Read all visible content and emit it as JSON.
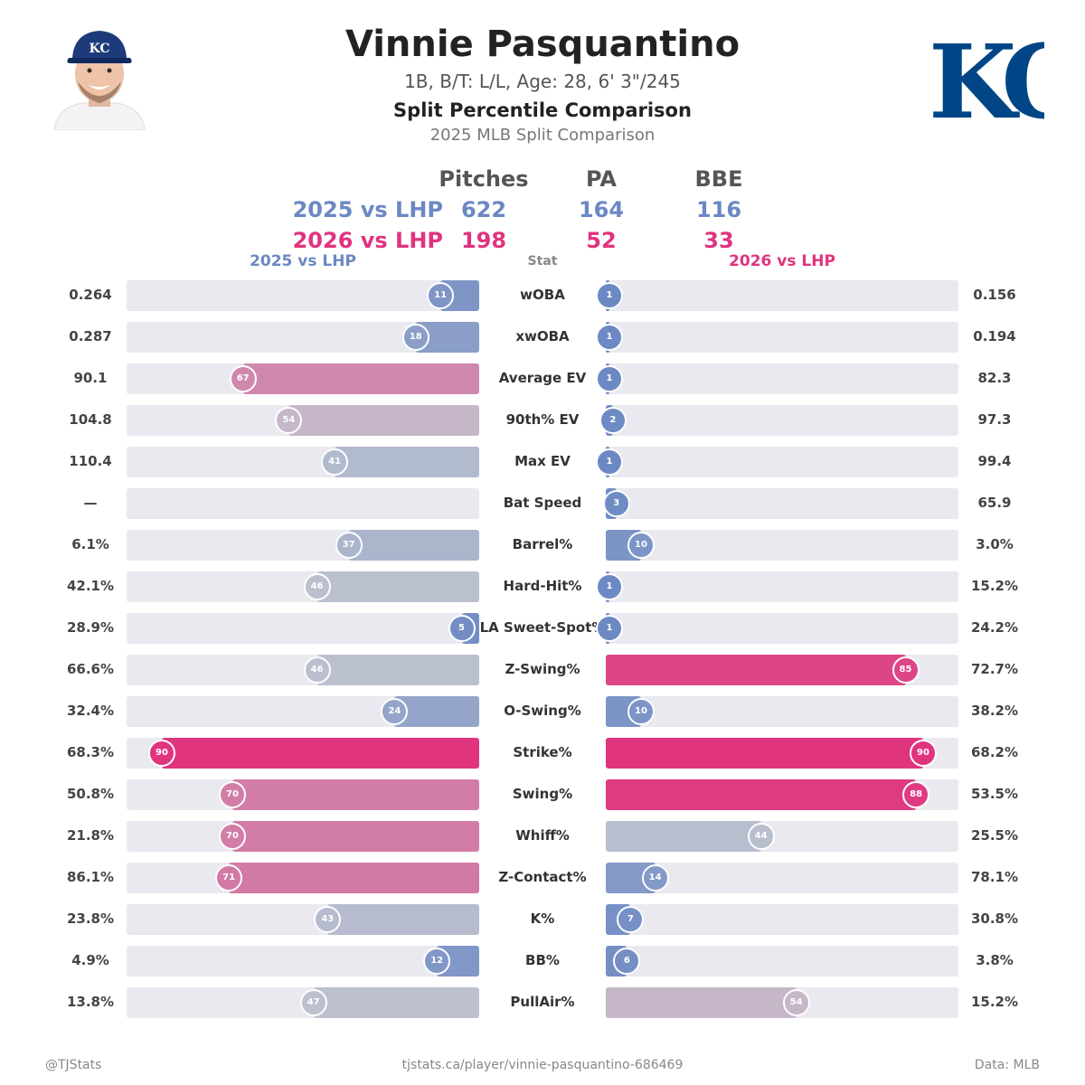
{
  "header": {
    "player_name": "Vinnie Pasquantino",
    "bio": "1B, B/T: L/L, Age: 28, 6' 3\"/245",
    "chart_title": "Split Percentile Comparison",
    "chart_subtitle": "2025 MLB Split Comparison"
  },
  "summary": {
    "columns": [
      "Pitches",
      "PA",
      "BBE"
    ],
    "rows": [
      {
        "label": "2025 vs LHP",
        "pitches": "622",
        "pa": "164",
        "bbe": "116"
      },
      {
        "label": "2026 vs LHP",
        "pitches": "198",
        "pa": "52",
        "bbe": "33"
      }
    ]
  },
  "column_headers": {
    "left": "2025 vs LHP",
    "center": "Stat",
    "right": "2026 vs LHP"
  },
  "colors": {
    "good": "#6b88c4",
    "bad": "#e0347f",
    "neutral": "#c2c5cf",
    "track": "#e9e9ef"
  },
  "chart_data": {
    "type": "bar",
    "series": [
      {
        "name": "2025 vs LHP"
      },
      {
        "name": "2026 vs LHP"
      }
    ],
    "rows": [
      {
        "stat": "wOBA",
        "left_value": "0.264",
        "left_pct": 11,
        "right_value": "0.156",
        "right_pct": 1
      },
      {
        "stat": "xwOBA",
        "left_value": "0.287",
        "left_pct": 18,
        "right_value": "0.194",
        "right_pct": 1
      },
      {
        "stat": "Average EV",
        "left_value": "90.1",
        "left_pct": 67,
        "right_value": "82.3",
        "right_pct": 1
      },
      {
        "stat": "90th% EV",
        "left_value": "104.8",
        "left_pct": 54,
        "right_value": "97.3",
        "right_pct": 2
      },
      {
        "stat": "Max EV",
        "left_value": "110.4",
        "left_pct": 41,
        "right_value": "99.4",
        "right_pct": 1
      },
      {
        "stat": "Bat Speed",
        "left_value": "—",
        "left_pct": null,
        "right_value": "65.9",
        "right_pct": 3
      },
      {
        "stat": "Barrel%",
        "left_value": "6.1%",
        "left_pct": 37,
        "right_value": "3.0%",
        "right_pct": 10
      },
      {
        "stat": "Hard-Hit%",
        "left_value": "42.1%",
        "left_pct": 46,
        "right_value": "15.2%",
        "right_pct": 1
      },
      {
        "stat": "LA Sweet-Spot%",
        "left_value": "28.9%",
        "left_pct": 5,
        "right_value": "24.2%",
        "right_pct": 1
      },
      {
        "stat": "Z-Swing%",
        "left_value": "66.6%",
        "left_pct": 46,
        "right_value": "72.7%",
        "right_pct": 85
      },
      {
        "stat": "O-Swing%",
        "left_value": "32.4%",
        "left_pct": 24,
        "right_value": "38.2%",
        "right_pct": 10
      },
      {
        "stat": "Strike%",
        "left_value": "68.3%",
        "left_pct": 90,
        "right_value": "68.2%",
        "right_pct": 90
      },
      {
        "stat": "Swing%",
        "left_value": "50.8%",
        "left_pct": 70,
        "right_value": "53.5%",
        "right_pct": 88
      },
      {
        "stat": "Whiff%",
        "left_value": "21.8%",
        "left_pct": 70,
        "right_value": "25.5%",
        "right_pct": 44
      },
      {
        "stat": "Z-Contact%",
        "left_value": "86.1%",
        "left_pct": 71,
        "right_value": "78.1%",
        "right_pct": 14
      },
      {
        "stat": "K%",
        "left_value": "23.8%",
        "left_pct": 43,
        "right_value": "30.8%",
        "right_pct": 7
      },
      {
        "stat": "BB%",
        "left_value": "4.9%",
        "left_pct": 12,
        "right_value": "3.8%",
        "right_pct": 6
      },
      {
        "stat": "PullAir%",
        "left_value": "13.8%",
        "left_pct": 47,
        "right_value": "15.2%",
        "right_pct": 54
      }
    ],
    "xlim": [
      0,
      100
    ],
    "grid": false,
    "legend": "top"
  },
  "footer": {
    "left": "@TJStats",
    "center": "tjstats.ca/player/vinnie-pasquantino-686469",
    "right": "Data: MLB"
  },
  "logo": {
    "text": "KC",
    "color": "#004687"
  },
  "headshot": {
    "cap_letters": "KC"
  }
}
